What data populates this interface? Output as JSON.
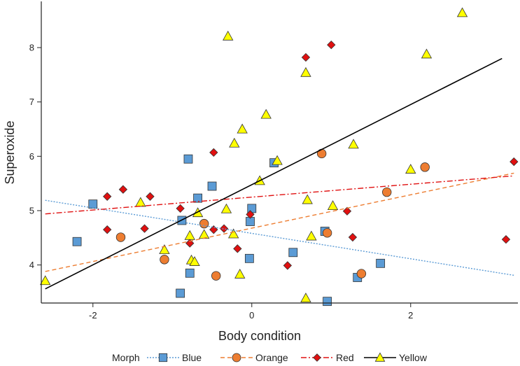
{
  "chart_data": {
    "type": "scatter",
    "title": "",
    "xlabel": "Body condition",
    "ylabel": "Superoxide",
    "xlim": [
      -2.65,
      3.35
    ],
    "ylim": [
      3.3,
      8.85
    ],
    "xticks": [
      -2,
      0,
      2
    ],
    "yticks": [
      4,
      5,
      6,
      7,
      8
    ],
    "grid": false,
    "legend": {
      "title": "Morph",
      "position": "bottom"
    },
    "series": [
      {
        "name": "Blue",
        "marker": "square",
        "color": "#5b9bd5",
        "line_style": "dotted",
        "fit": {
          "x": [
            -2.6,
            3.3
          ],
          "y": [
            5.19,
            3.81
          ]
        },
        "points": [
          [
            -2.2,
            4.43
          ],
          [
            -2.0,
            5.12
          ],
          [
            -0.8,
            5.95
          ],
          [
            -0.88,
            4.82
          ],
          [
            -0.68,
            5.23
          ],
          [
            -0.5,
            5.45
          ],
          [
            -0.78,
            3.85
          ],
          [
            -0.9,
            3.48
          ],
          [
            0.0,
            5.04
          ],
          [
            -0.02,
            4.8
          ],
          [
            -0.03,
            4.12
          ],
          [
            0.28,
            5.88
          ],
          [
            0.52,
            4.23
          ],
          [
            0.92,
            4.62
          ],
          [
            0.95,
            3.33
          ],
          [
            1.33,
            3.77
          ],
          [
            1.62,
            4.03
          ]
        ]
      },
      {
        "name": "Orange",
        "marker": "circle",
        "color": "#ed7d31",
        "line_style": "dashed",
        "fit": {
          "x": [
            -2.6,
            3.3
          ],
          "y": [
            3.88,
            5.69
          ]
        },
        "points": [
          [
            -1.65,
            4.51
          ],
          [
            -1.1,
            4.1
          ],
          [
            -0.6,
            4.76
          ],
          [
            -0.45,
            3.8
          ],
          [
            0.88,
            6.05
          ],
          [
            0.95,
            4.59
          ],
          [
            1.38,
            3.84
          ],
          [
            1.7,
            5.34
          ],
          [
            2.18,
            5.8
          ]
        ]
      },
      {
        "name": "Red",
        "marker": "diamond",
        "color": "#e01010",
        "line_style": "dashdot",
        "fit": {
          "x": [
            -2.6,
            3.3
          ],
          "y": [
            4.94,
            5.64
          ]
        },
        "points": [
          [
            -1.82,
            5.26
          ],
          [
            -1.62,
            5.39
          ],
          [
            -1.82,
            4.65
          ],
          [
            -1.35,
            4.67
          ],
          [
            -1.28,
            5.26
          ],
          [
            -0.9,
            5.04
          ],
          [
            -0.78,
            4.4
          ],
          [
            -0.48,
            6.07
          ],
          [
            -0.48,
            4.65
          ],
          [
            -0.35,
            4.67
          ],
          [
            -0.18,
            4.3
          ],
          [
            -0.02,
            4.93
          ],
          [
            0.45,
            3.99
          ],
          [
            0.68,
            7.82
          ],
          [
            1.0,
            8.05
          ],
          [
            1.2,
            4.99
          ],
          [
            1.27,
            4.51
          ],
          [
            3.2,
            4.47
          ],
          [
            3.3,
            5.9
          ]
        ]
      },
      {
        "name": "Yellow",
        "marker": "triangle",
        "color": "#ffff00",
        "line_style": "solid",
        "line_color": "#000000",
        "fit": {
          "x": [
            -2.6,
            3.15
          ],
          "y": [
            3.56,
            7.8
          ]
        },
        "points": [
          [
            -2.6,
            3.71
          ],
          [
            -1.4,
            5.15
          ],
          [
            -1.1,
            4.28
          ],
          [
            -0.78,
            4.54
          ],
          [
            -0.76,
            4.09
          ],
          [
            -0.72,
            4.06
          ],
          [
            -0.68,
            4.96
          ],
          [
            -0.6,
            4.56
          ],
          [
            -0.32,
            5.03
          ],
          [
            -0.3,
            8.21
          ],
          [
            -0.23,
            4.57
          ],
          [
            -0.22,
            6.24
          ],
          [
            -0.15,
            3.83
          ],
          [
            -0.12,
            6.5
          ],
          [
            0.1,
            5.55
          ],
          [
            0.18,
            6.77
          ],
          [
            0.32,
            5.92
          ],
          [
            0.68,
            7.54
          ],
          [
            0.68,
            3.39
          ],
          [
            0.7,
            5.2
          ],
          [
            0.75,
            4.53
          ],
          [
            1.02,
            5.09
          ],
          [
            1.28,
            6.22
          ],
          [
            2.0,
            5.76
          ],
          [
            2.2,
            7.88
          ],
          [
            2.65,
            8.64
          ]
        ]
      }
    ]
  }
}
